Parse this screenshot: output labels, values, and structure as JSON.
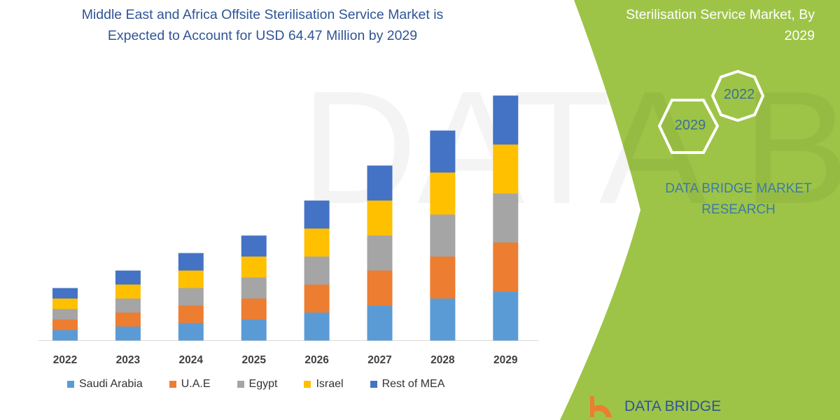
{
  "title": [
    "Middle East and Africa Offsite Sterilisation Service Market is",
    "Expected to Account for USD 64.47 Million by 2029"
  ],
  "side_panel": {
    "title": [
      "Sterilisation Service  Market, By",
      "2029"
    ],
    "hex_labels": [
      "2022",
      "2029"
    ],
    "brand": [
      "DATA BRIDGE MARKET",
      "RESEARCH"
    ],
    "logo_text": "DATA BRIDGE",
    "panel_color": "#9dc447"
  },
  "chart_data": {
    "type": "bar",
    "stacked": true,
    "categories": [
      "2022",
      "2023",
      "2024",
      "2025",
      "2026",
      "2027",
      "2028",
      "2029"
    ],
    "series": [
      {
        "name": "Saudi Arabia",
        "color": "#5b9bd5",
        "values": [
          15,
          20,
          25,
          30,
          40,
          50,
          60,
          70
        ]
      },
      {
        "name": "U.A.E",
        "color": "#ed7d31",
        "values": [
          15,
          20,
          25,
          30,
          40,
          50,
          60,
          70
        ]
      },
      {
        "name": "Egypt",
        "color": "#a5a5a5",
        "values": [
          15,
          20,
          25,
          30,
          40,
          50,
          60,
          70
        ]
      },
      {
        "name": "Israel",
        "color": "#ffc000",
        "values": [
          15,
          20,
          25,
          30,
          40,
          50,
          60,
          70
        ]
      },
      {
        "name": "Rest of MEA",
        "color": "#4472c4",
        "values": [
          15,
          20,
          25,
          30,
          40,
          50,
          60,
          70
        ]
      }
    ],
    "y_axis_shown": false,
    "grid": false,
    "legend_position": "bottom"
  }
}
